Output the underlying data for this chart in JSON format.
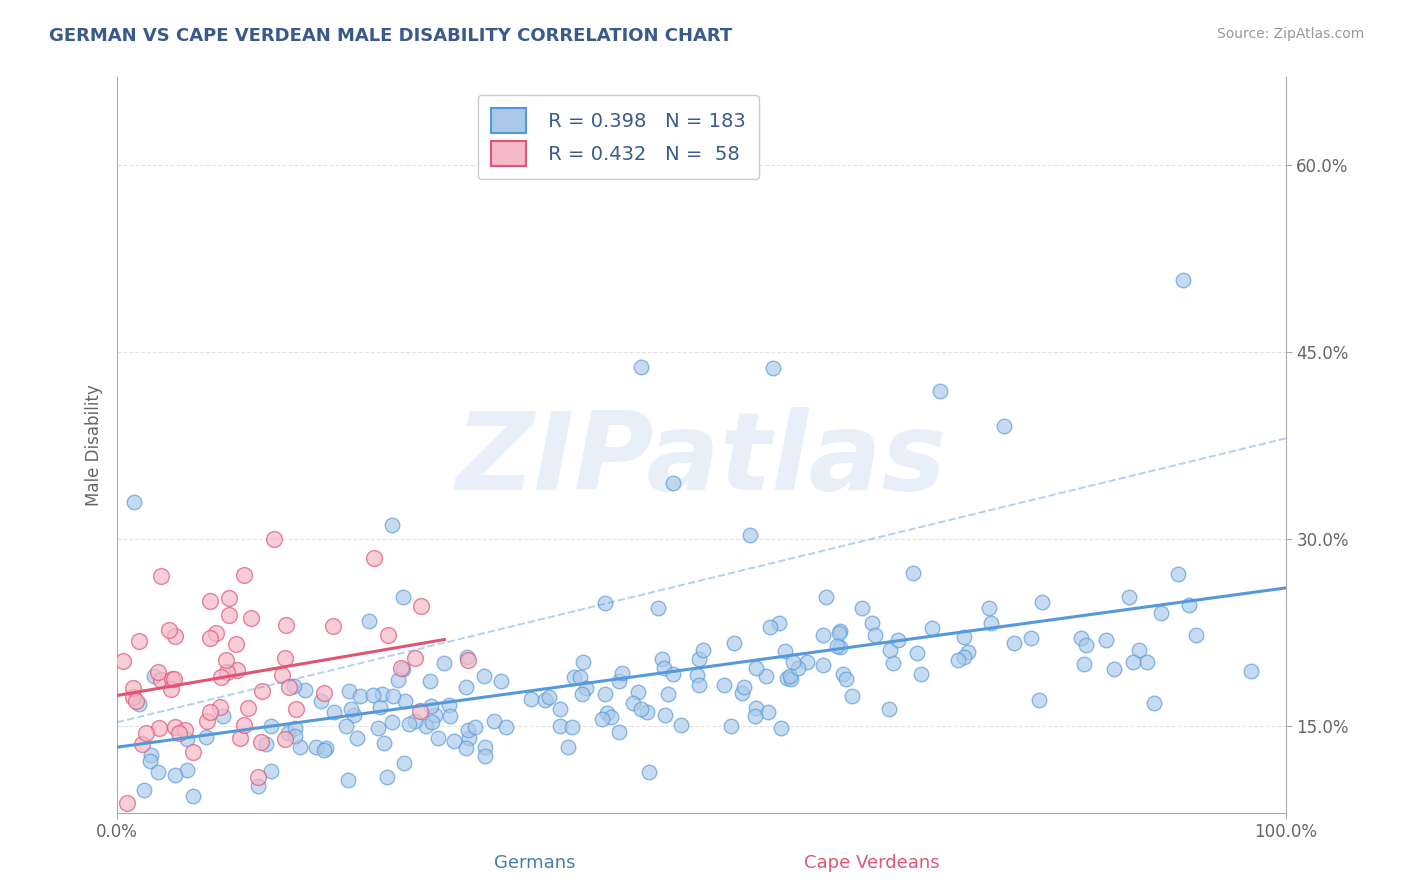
{
  "title": "GERMAN VS CAPE VERDEAN MALE DISABILITY CORRELATION CHART",
  "source": "Source: ZipAtlas.com",
  "xlabel_german": "Germans",
  "xlabel_capeverdean": "Cape Verdeans",
  "ylabel": "Male Disability",
  "watermark": "ZIPatlas",
  "legend_german_r": "0.398",
  "legend_german_n": "183",
  "legend_capeverdean_r": "0.432",
  "legend_capeverdean_n": "58",
  "german_color": "#aac9e8",
  "capeverdean_color": "#f5b8c8",
  "german_line_color": "#5599dd",
  "capeverdean_line_color": "#e05575",
  "german_edge_color": "#5599dd",
  "capeverdean_edge_color": "#e05575",
  "xlim": [
    0,
    1
  ],
  "ylim": [
    0.08,
    0.67
  ],
  "yticks": [
    0.15,
    0.3,
    0.45,
    0.6
  ],
  "ytick_labels": [
    "15.0%",
    "30.0%",
    "45.0%",
    "60.0%"
  ],
  "xticks": [
    0.0,
    1.0
  ],
  "xtick_labels": [
    "0.0%",
    "100.0%"
  ],
  "title_color": "#3a5a8c",
  "source_color": "#999999",
  "axis_label_color": "#666666",
  "tick_color": "#666666",
  "grid_color": "#dddddd",
  "watermark_color": "#c8d8ee",
  "watermark_alpha": 0.4
}
